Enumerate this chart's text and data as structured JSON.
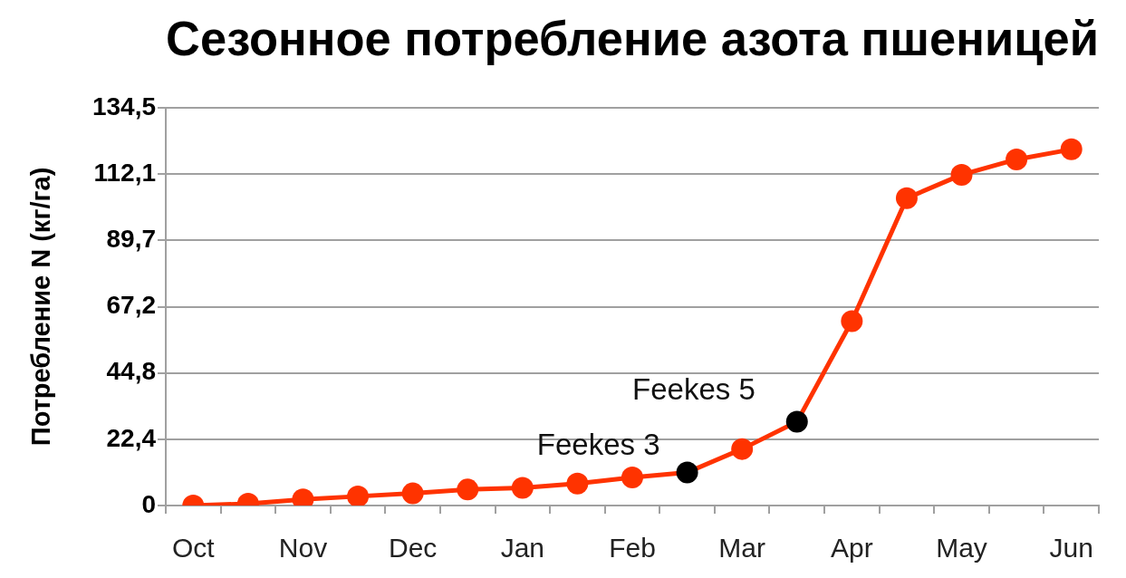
{
  "chart_data": {
    "type": "line",
    "title": "Сезонное потребление азота пшеницей",
    "ylabel": "Потребление N (кг/га)",
    "categories": [
      "Oct",
      null,
      "Nov",
      null,
      "Dec",
      null,
      "Jan",
      null,
      "Feb",
      null,
      "Mar",
      null,
      "Apr",
      null,
      "May",
      null,
      "Jun"
    ],
    "series": [
      {
        "color": "#ff3300",
        "colors": [
          "#ff3300",
          "#ff3300",
          "#ff3300",
          "#ff3300",
          "#ff3300",
          "#ff3300",
          "#ff3300",
          "#ff3300",
          "#ff3300",
          "#000000",
          "#ff3300",
          "#000000",
          "#ff3300",
          "#ff3300",
          "#ff3300",
          "#ff3300",
          "#ff3300"
        ],
        "values": [
          0,
          0.6,
          2.1,
          3.1,
          4.1,
          5.4,
          6,
          7.4,
          9.5,
          11.2,
          19.1,
          28.3,
          62.3,
          103.9,
          111.8,
          117,
          120.4
        ]
      }
    ],
    "ylim": [
      0,
      134.5
    ],
    "yticks": [
      0,
      {
        "value": 22.4,
        "label": "22,4"
      },
      {
        "value": 44.8,
        "label": "44,8"
      },
      {
        "value": 67.2,
        "label": "67,2"
      },
      {
        "value": 89.7,
        "label": "89,7"
      },
      {
        "value": 112.1,
        "label": "112,1"
      },
      {
        "value": 134.5,
        "label": "134,5"
      }
    ],
    "grid": "y",
    "marker": "circle",
    "line_style": "solid",
    "annotations": [
      "Feekes 3",
      "Feekes 5"
    ]
  }
}
